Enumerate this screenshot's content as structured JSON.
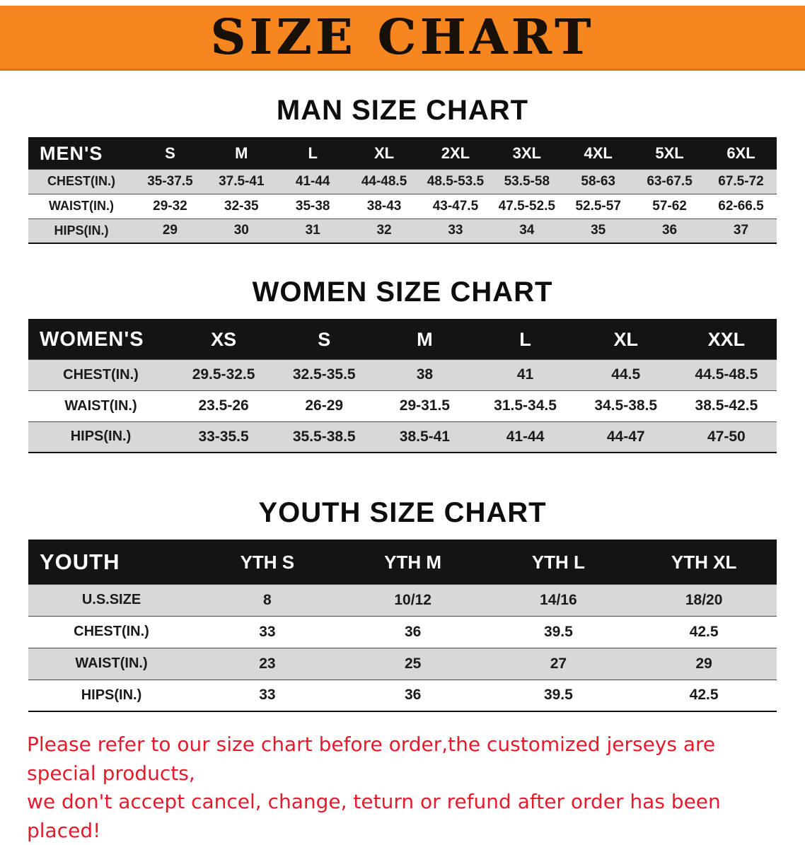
{
  "colors": {
    "banner-bg": "#f6861f",
    "header-bg": "#141414",
    "stripe": "#d8d8d8",
    "warn-red": "#e51b2c"
  },
  "banner": {
    "title": "SIZE CHART"
  },
  "men": {
    "heading": "MAN SIZE CHART",
    "corner": "MEN'S",
    "sizes": [
      "S",
      "M",
      "L",
      "XL",
      "2XL",
      "3XL",
      "4XL",
      "5XL",
      "6XL"
    ],
    "rows": [
      {
        "label": "CHEST(IN.)",
        "values": [
          "35-37.5",
          "37.5-41",
          "41-44",
          "44-48.5",
          "48.5-53.5",
          "53.5-58",
          "58-63",
          "63-67.5",
          "67.5-72"
        ]
      },
      {
        "label": "WAIST(IN.)",
        "values": [
          "29-32",
          "32-35",
          "35-38",
          "38-43",
          "43-47.5",
          "47.5-52.5",
          "52.5-57",
          "57-62",
          "62-66.5"
        ]
      },
      {
        "label": "HIPS(IN.)",
        "values": [
          "29",
          "30",
          "31",
          "32",
          "33",
          "34",
          "35",
          "36",
          "37"
        ]
      }
    ]
  },
  "women": {
    "heading": "WOMEN SIZE CHART",
    "corner": "WOMEN'S",
    "sizes": [
      "XS",
      "S",
      "M",
      "L",
      "XL",
      "XXL"
    ],
    "rows": [
      {
        "label": "CHEST(IN.)",
        "values": [
          "29.5-32.5",
          "32.5-35.5",
          "38",
          "41",
          "44.5",
          "44.5-48.5"
        ]
      },
      {
        "label": "WAIST(IN.)",
        "values": [
          "23.5-26",
          "26-29",
          "29-31.5",
          "31.5-34.5",
          "34.5-38.5",
          "38.5-42.5"
        ]
      },
      {
        "label": "HIPS(IN.)",
        "values": [
          "33-35.5",
          "35.5-38.5",
          "38.5-41",
          "41-44",
          "44-47",
          "47-50"
        ]
      }
    ]
  },
  "youth": {
    "heading": "YOUTH SIZE CHART",
    "corner": "YOUTH",
    "sizes": [
      "YTH S",
      "YTH M",
      "YTH L",
      "YTH XL"
    ],
    "rows": [
      {
        "label": "U.S.SIZE",
        "values": [
          "8",
          "10/12",
          "14/16",
          "18/20"
        ]
      },
      {
        "label": "CHEST(IN.)",
        "values": [
          "33",
          "36",
          "39.5",
          "42.5"
        ]
      },
      {
        "label": "WAIST(IN.)",
        "values": [
          "23",
          "25",
          "27",
          "29"
        ]
      },
      {
        "label": "HIPS(IN.)",
        "values": [
          "33",
          "36",
          "39.5",
          "42.5"
        ]
      }
    ]
  },
  "disclaimer": {
    "lines": [
      "Please refer to our size chart before order,the customized jerseys are special products,",
      "we don't accept cancel, change, teturn or refund after order has been placed!"
    ]
  }
}
